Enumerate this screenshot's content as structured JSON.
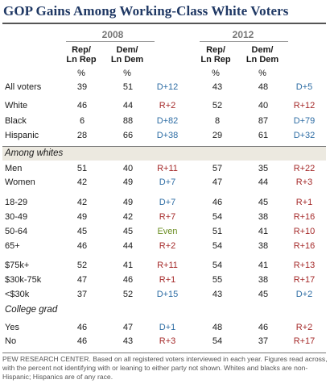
{
  "title": "GOP Gains Among Working-Class White Voters",
  "chart_data": {
    "type": "table",
    "years": [
      "2008",
      "2012"
    ],
    "column_headers": {
      "rep": [
        "Rep/",
        "Ln Rep"
      ],
      "dem": [
        "Dem/",
        "Ln Dem"
      ],
      "pct": "%"
    },
    "rows": [
      {
        "label": "All voters",
        "r08": "39",
        "d08": "51",
        "g08": "D+12",
        "r12": "43",
        "d12": "48",
        "g12": "D+5"
      },
      {
        "label": "White",
        "r08": "46",
        "d08": "44",
        "g08": "R+2",
        "r12": "52",
        "d12": "40",
        "g12": "R+12"
      },
      {
        "label": "Black",
        "r08": "6",
        "d08": "88",
        "g08": "D+82",
        "r12": "8",
        "d12": "87",
        "g12": "D+79"
      },
      {
        "label": "Hispanic",
        "r08": "28",
        "d08": "66",
        "g08": "D+38",
        "r12": "29",
        "d12": "61",
        "g12": "D+32"
      },
      {
        "section": "Among whites"
      },
      {
        "label": "Men",
        "r08": "51",
        "d08": "40",
        "g08": "R+11",
        "r12": "57",
        "d12": "35",
        "g12": "R+22"
      },
      {
        "label": "Women",
        "r08": "42",
        "d08": "49",
        "g08": "D+7",
        "r12": "47",
        "d12": "44",
        "g12": "R+3"
      },
      {
        "label": "18-29",
        "r08": "42",
        "d08": "49",
        "g08": "D+7",
        "r12": "46",
        "d12": "45",
        "g12": "R+1"
      },
      {
        "label": "30-49",
        "r08": "49",
        "d08": "42",
        "g08": "R+7",
        "r12": "54",
        "d12": "38",
        "g12": "R+16"
      },
      {
        "label": "50-64",
        "r08": "45",
        "d08": "45",
        "g08": "Even",
        "r12": "51",
        "d12": "41",
        "g12": "R+10"
      },
      {
        "label": "65+",
        "r08": "46",
        "d08": "44",
        "g08": "R+2",
        "r12": "54",
        "d12": "38",
        "g12": "R+16"
      },
      {
        "label": "$75k+",
        "r08": "52",
        "d08": "41",
        "g08": "R+11",
        "r12": "54",
        "d12": "41",
        "g12": "R+13"
      },
      {
        "label": "$30k-75k",
        "r08": "47",
        "d08": "46",
        "g08": "R+1",
        "r12": "55",
        "d12": "38",
        "g12": "R+17"
      },
      {
        "label": "<$30k",
        "r08": "37",
        "d08": "52",
        "g08": "D+15",
        "r12": "43",
        "d12": "45",
        "g12": "D+2"
      },
      {
        "section": "College grad"
      },
      {
        "label": "Yes",
        "r08": "46",
        "d08": "47",
        "g08": "D+1",
        "r12": "48",
        "d12": "46",
        "g12": "R+2"
      },
      {
        "label": "No",
        "r08": "46",
        "d08": "43",
        "g08": "R+3",
        "r12": "54",
        "d12": "37",
        "g12": "R+17"
      }
    ]
  },
  "footnote": "PEW RESEARCH CENTER. Based on all registered voters interviewed in each year. Figures read across, with the percent not identifying with or leaning to either party not shown. Whites and blacks are non-Hispanic; Hispanics are of any race.",
  "colors": {
    "title": "#1f3864",
    "rep_gap": "#a52a2a",
    "dem_gap": "#2e6da4",
    "even_gap": "#6b8e23",
    "section_band": "#ece9e0"
  }
}
